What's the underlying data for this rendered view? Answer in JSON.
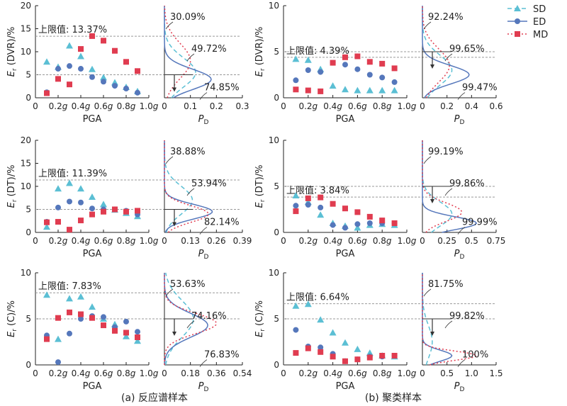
{
  "legend": [
    {
      "label": "SD",
      "color": "#5bbfd4",
      "marker": "triangle",
      "line": "dashed"
    },
    {
      "label": "ED",
      "color": "#5577bb",
      "marker": "circle",
      "line": "solid"
    },
    {
      "label": "MD",
      "color": "#e03c50",
      "marker": "square",
      "line": "dotted"
    }
  ],
  "captions": {
    "a": "(a) 反应谱样本",
    "b": "(b) 聚类样本"
  },
  "chart_data": [
    {
      "id": "a1",
      "type": "scatter",
      "xlabel": "PGA",
      "ylabel": "E_r (DVR)/%",
      "xlim": [
        0,
        1.0
      ],
      "ylim": [
        0,
        20
      ],
      "xticks": [
        "0",
        "0.2g",
        "0.4g",
        "0.6g",
        "0.8g",
        "1.0g"
      ],
      "yticks": [
        0,
        5,
        10,
        15,
        20
      ],
      "upper_line": 13.37,
      "upper_label": "上限值: 13.37%",
      "mean_line": 5.0,
      "series": [
        {
          "name": "SD",
          "x": [
            0.1,
            0.2,
            0.3,
            0.4,
            0.5,
            0.6,
            0.7,
            0.8,
            0.9
          ],
          "y": [
            7.8,
            6.7,
            11.3,
            9.0,
            6.2,
            4.4,
            3.3,
            2.3,
            1.4
          ]
        },
        {
          "name": "ED",
          "x": [
            0.1,
            0.2,
            0.3,
            0.4,
            0.5,
            0.6,
            0.7,
            0.8,
            0.9
          ],
          "y": [
            1.2,
            6.3,
            6.9,
            6.3,
            4.5,
            3.5,
            2.6,
            2.0,
            1.1
          ]
        },
        {
          "name": "MD",
          "x": [
            0.1,
            0.2,
            0.3,
            0.4,
            0.5,
            0.6,
            0.7,
            0.8,
            0.9
          ],
          "y": [
            1.0,
            4.1,
            2.9,
            10.6,
            13.4,
            12.4,
            10.2,
            7.8,
            5.8
          ]
        }
      ],
      "dist": {
        "xlim": [
          0,
          0.3
        ],
        "xticks": [
          "0",
          "0.1",
          "0.2",
          "0.3"
        ],
        "xlabel": "P_D",
        "curves": [
          {
            "series": "SD",
            "mean": 5.5,
            "sd": 3.2,
            "peak": 0.12
          },
          {
            "series": "ED",
            "mean": 4.0,
            "sd": 2.2,
            "peak": 0.18
          },
          {
            "series": "MD",
            "mean": 8.0,
            "sd": 3.8,
            "peak": 0.1
          }
        ],
        "labels": [
          "30.09%",
          "49.72%",
          "74.85%"
        ]
      }
    },
    {
      "id": "b1",
      "type": "scatter",
      "xlabel": "PGA",
      "ylabel": "E_r (DVR)/%",
      "xlim": [
        0,
        1.0
      ],
      "ylim": [
        0,
        10
      ],
      "xticks": [
        "0",
        "0.2g",
        "0.4g",
        "0.6g",
        "0.8g",
        "1.0g"
      ],
      "yticks": [
        0,
        5,
        10
      ],
      "upper_line": 4.39,
      "upper_label": "上限值: 4.39%",
      "mean_line": 5.0,
      "series": [
        {
          "name": "SD",
          "x": [
            0.1,
            0.2,
            0.3,
            0.4,
            0.5,
            0.6,
            0.7,
            0.8,
            0.9
          ],
          "y": [
            4.2,
            4.1,
            3.1,
            1.3,
            0.9,
            0.8,
            0.8,
            0.8,
            0.8
          ]
        },
        {
          "name": "ED",
          "x": [
            0.1,
            0.2,
            0.3,
            0.4,
            0.5,
            0.6,
            0.7,
            0.8,
            0.9
          ],
          "y": [
            1.9,
            3.0,
            2.8,
            3.8,
            3.6,
            3.1,
            2.5,
            2.2,
            1.7
          ]
        },
        {
          "name": "MD",
          "x": [
            0.1,
            0.2,
            0.3,
            0.4,
            0.5,
            0.6,
            0.7,
            0.8,
            0.9
          ],
          "y": [
            0.9,
            0.8,
            0.7,
            3.8,
            4.4,
            4.5,
            3.9,
            3.7,
            3.2
          ]
        }
      ],
      "dist": {
        "xlim": [
          0,
          0.6
        ],
        "xticks": [
          "0",
          "0.2",
          "0.4",
          "0.6"
        ],
        "xlabel": "P_D",
        "curves": [
          {
            "series": "SD",
            "mean": 3.0,
            "sd": 1.6,
            "peak": 0.24
          },
          {
            "series": "ED",
            "mean": 2.5,
            "sd": 1.0,
            "peak": 0.38
          },
          {
            "series": "MD",
            "mean": 3.5,
            "sd": 1.8,
            "peak": 0.22
          }
        ],
        "labels": [
          "92.24%",
          "99.65%",
          "99.47%"
        ]
      }
    },
    {
      "id": "a2",
      "type": "scatter",
      "xlabel": "PGA",
      "ylabel": "E_r (DT)/%",
      "xlim": [
        0,
        1.0
      ],
      "ylim": [
        0,
        20
      ],
      "xticks": [
        "0",
        "0.2g",
        "0.4g",
        "0.6g",
        "0.8g",
        "1.0g"
      ],
      "yticks": [
        0,
        5,
        10,
        15,
        20
      ],
      "upper_line": 11.39,
      "upper_label": "上限值: 11.39%",
      "mean_line": 5.0,
      "series": [
        {
          "name": "SD",
          "x": [
            0.1,
            0.2,
            0.3,
            0.4,
            0.5,
            0.6,
            0.7,
            0.8,
            0.9
          ],
          "y": [
            1.2,
            9.5,
            10.7,
            9.5,
            7.7,
            6.1,
            4.9,
            4.2,
            3.5
          ]
        },
        {
          "name": "ED",
          "x": [
            0.1,
            0.2,
            0.3,
            0.4,
            0.5,
            0.6,
            0.7,
            0.8,
            0.9
          ],
          "y": [
            2.3,
            5.4,
            6.7,
            6.5,
            5.2,
            5.0,
            5.0,
            4.7,
            3.9
          ]
        },
        {
          "name": "MD",
          "x": [
            0.1,
            0.2,
            0.3,
            0.4,
            0.5,
            0.6,
            0.7,
            0.8,
            0.9
          ],
          "y": [
            2.2,
            2.3,
            0.6,
            2.6,
            3.9,
            4.5,
            5.0,
            4.5,
            4.7
          ]
        }
      ],
      "dist": {
        "xlim": [
          0,
          0.39
        ],
        "xticks": [
          "0",
          "0.13",
          "0.26",
          "0.39"
        ],
        "xlabel": "P_D",
        "curves": [
          {
            "series": "SD",
            "mean": 7.0,
            "sd": 3.0,
            "peak": 0.14
          },
          {
            "series": "ED",
            "mean": 4.5,
            "sd": 1.6,
            "peak": 0.24
          },
          {
            "series": "MD",
            "mean": 4.0,
            "sd": 1.8,
            "peak": 0.22
          }
        ],
        "labels": [
          "38.88%",
          "53.94%",
          "82.14%"
        ]
      }
    },
    {
      "id": "b2",
      "type": "scatter",
      "xlabel": "PGA",
      "ylabel": "E_r (DT)/%",
      "xlim": [
        0,
        1.0
      ],
      "ylim": [
        0,
        10
      ],
      "xticks": [
        "0",
        "0.2g",
        "0.4g",
        "0.6g",
        "0.8g",
        "1.0g"
      ],
      "yticks": [
        0,
        5,
        10
      ],
      "upper_line": 3.84,
      "upper_label": "上限值: 3.84%",
      "mean_line": 5.0,
      "series": [
        {
          "name": "SD",
          "x": [
            0.1,
            0.2,
            0.3,
            0.4,
            0.5,
            0.6,
            0.7,
            0.8,
            0.9
          ],
          "y": [
            4.0,
            3.3,
            1.9,
            1.0,
            0.7,
            0.5,
            0.8,
            0.9,
            0.8
          ]
        },
        {
          "name": "ED",
          "x": [
            0.1,
            0.2,
            0.3,
            0.4,
            0.5,
            0.6,
            0.7,
            0.8,
            0.9
          ],
          "y": [
            2.9,
            3.0,
            2.7,
            0.8,
            0.5,
            0.9,
            1.0,
            1.0,
            1.0
          ]
        },
        {
          "name": "MD",
          "x": [
            0.1,
            0.2,
            0.3,
            0.4,
            0.5,
            0.6,
            0.7,
            0.8,
            0.9
          ],
          "y": [
            2.3,
            3.7,
            3.8,
            3.1,
            2.6,
            2.2,
            1.7,
            1.3,
            1.0
          ]
        }
      ],
      "dist": {
        "xlim": [
          0,
          0.75
        ],
        "xticks": [
          "0",
          "0.25",
          "0.5",
          "0.75"
        ],
        "xlabel": "P_D",
        "curves": [
          {
            "series": "SD",
            "mean": 2.0,
            "sd": 1.3,
            "peak": 0.3
          },
          {
            "series": "ED",
            "mean": 1.0,
            "sd": 0.7,
            "peak": 0.55
          },
          {
            "series": "MD",
            "mean": 2.2,
            "sd": 1.0,
            "peak": 0.4
          }
        ],
        "labels": [
          "99.19%",
          "99.86%",
          "99.99%"
        ]
      }
    },
    {
      "id": "a3",
      "type": "scatter",
      "xlabel": "PGA",
      "ylabel": "E_r (C)/%",
      "xlim": [
        0,
        1.0
      ],
      "ylim": [
        0,
        10
      ],
      "xticks": [
        "0",
        "0.2g",
        "0.4g",
        "0.6g",
        "0.8g",
        "1.0g"
      ],
      "yticks": [
        0,
        5,
        10
      ],
      "upper_line": 7.83,
      "upper_label": "上限值: 7.83%",
      "mean_line": 5.0,
      "series": [
        {
          "name": "SD",
          "x": [
            0.1,
            0.2,
            0.3,
            0.4,
            0.5,
            0.6,
            0.7,
            0.8,
            0.9
          ],
          "y": [
            7.6,
            2.8,
            7.2,
            7.4,
            6.3,
            5.0,
            4.4,
            3.1,
            2.6
          ]
        },
        {
          "name": "ED",
          "x": [
            0.1,
            0.2,
            0.3,
            0.4,
            0.5,
            0.6,
            0.7,
            0.8,
            0.9
          ],
          "y": [
            3.2,
            0.3,
            3.4,
            5.0,
            5.3,
            5.2,
            4.1,
            4.7,
            3.6
          ]
        },
        {
          "name": "MD",
          "x": [
            0.1,
            0.2,
            0.3,
            0.4,
            0.5,
            0.6,
            0.7,
            0.8,
            0.9
          ],
          "y": [
            2.8,
            5.1,
            5.7,
            5.5,
            5.1,
            4.3,
            3.7,
            3.5,
            3.0
          ]
        }
      ],
      "dist": {
        "xlim": [
          0,
          0.54
        ],
        "xticks": [
          "0",
          "0.18",
          "0.36",
          "0.54"
        ],
        "xlabel": "P_D",
        "curves": [
          {
            "series": "SD",
            "mean": 5.0,
            "sd": 2.0,
            "peak": 0.2
          },
          {
            "series": "ED",
            "mean": 4.3,
            "sd": 1.3,
            "peak": 0.3
          },
          {
            "series": "MD",
            "mean": 4.5,
            "sd": 1.1,
            "peak": 0.36
          }
        ],
        "labels": [
          "53.63%",
          "74.16%",
          "76.83%"
        ]
      }
    },
    {
      "id": "b3",
      "type": "scatter",
      "xlabel": "PGA",
      "ylabel": "E_r (C)/%",
      "xlim": [
        0,
        1.0
      ],
      "ylim": [
        0,
        10
      ],
      "xticks": [
        "0",
        "0.2g",
        "0.4g",
        "0.6g",
        "0.8g",
        "1.0g"
      ],
      "yticks": [
        0,
        5,
        10
      ],
      "upper_line": 6.64,
      "upper_label": "上限值: 6.64%",
      "mean_line": 5.0,
      "series": [
        {
          "name": "SD",
          "x": [
            0.1,
            0.2,
            0.3,
            0.4,
            0.5,
            0.6,
            0.7,
            0.8,
            0.9
          ],
          "y": [
            6.4,
            6.6,
            4.9,
            3.5,
            2.4,
            1.7,
            1.3,
            1.0,
            0.9
          ]
        },
        {
          "name": "ED",
          "x": [
            0.1,
            0.2,
            0.3,
            0.4,
            0.5,
            0.6,
            0.7,
            0.8,
            0.9
          ],
          "y": [
            3.8,
            2.0,
            1.9,
            1.2,
            0.4,
            0.6,
            0.9,
            0.9,
            1.0
          ]
        },
        {
          "name": "MD",
          "x": [
            0.1,
            0.2,
            0.3,
            0.4,
            0.5,
            0.6,
            0.7,
            0.8,
            0.9
          ],
          "y": [
            1.3,
            1.8,
            1.4,
            0.9,
            0.4,
            0.6,
            0.8,
            1.0,
            1.0
          ]
        }
      ],
      "dist": {
        "xlim": [
          0,
          1.5
        ],
        "xticks": [
          "0",
          "0.5",
          "1.0",
          "1.5"
        ],
        "xlabel": "P_D",
        "curves": [
          {
            "series": "SD",
            "mean": 2.5,
            "sd": 1.8,
            "peak": 0.2
          },
          {
            "series": "ED",
            "mean": 1.0,
            "sd": 0.6,
            "peak": 0.6
          },
          {
            "series": "MD",
            "mean": 1.0,
            "sd": 0.5,
            "peak": 1.1
          }
        ],
        "labels": [
          "81.75%",
          "99.82%",
          "100%"
        ]
      }
    }
  ]
}
